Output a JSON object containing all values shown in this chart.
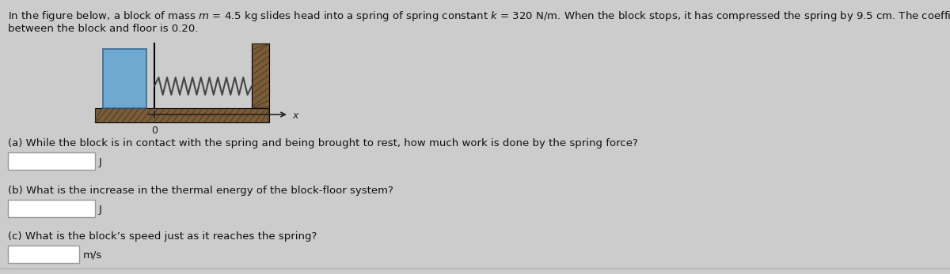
{
  "bg_color": "#cccccc",
  "text_color": "#111111",
  "line1": "In the figure below, a block of mass $m$ = 4.5 kg slides head into a spring of spring constant $k$ = 320 N/m. When the block stops, it has compressed the spring by 9.5 cm. The coefficient of kinetic friction",
  "line2": "between the block and floor is 0.20.",
  "q_a": "(a) While the block is in contact with the spring and being brought to rest, how much work is done by the spring force?",
  "unit_a": "J",
  "q_b": "(b) What is the increase in the thermal energy of the block-floor system?",
  "unit_b": "J",
  "q_c": "(c) What is the block’s speed just as it reaches the spring?",
  "unit_c": "m/s",
  "block_color": "#6fa8d0",
  "wall_hatch_color": "#7a5c3a",
  "floor_hatch_color": "#7a5c3a",
  "spring_color": "#444444",
  "axis_color": "#222222",
  "box_edge_color": "#999999",
  "white": "#ffffff"
}
